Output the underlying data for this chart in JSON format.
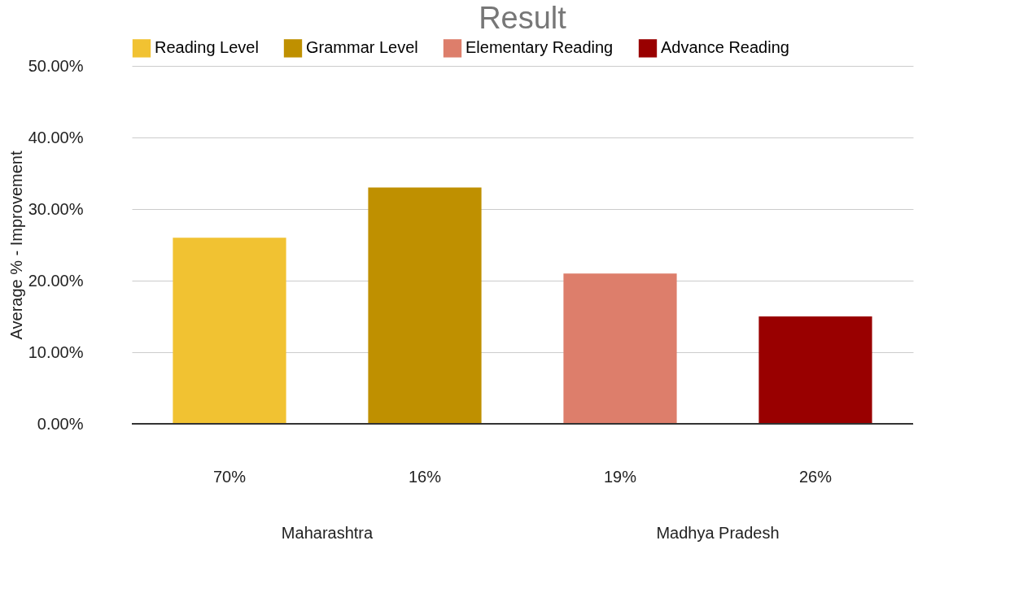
{
  "chart_data": {
    "type": "bar",
    "title": "Result",
    "ylabel": "Average % - Improvement",
    "categories": [
      "70%",
      "16%",
      "19%",
      "26%"
    ],
    "series": [
      {
        "name": "Reading Level",
        "color": "#f1c232",
        "values": [
          26,
          null,
          null,
          null
        ]
      },
      {
        "name": "Grammar Level",
        "color": "#bf9000",
        "values": [
          null,
          33,
          null,
          null
        ]
      },
      {
        "name": "Elementary Reading",
        "color": "#dd7e6b",
        "values": [
          null,
          null,
          21,
          null
        ]
      },
      {
        "name": "Advance Reading",
        "color": "#990000",
        "values": [
          null,
          null,
          null,
          15
        ]
      }
    ],
    "annotations": [
      "Maharashtra",
      "Madhya Pradesh"
    ],
    "ylim": [
      0,
      50
    ],
    "yticks": [
      {
        "value": 0,
        "label": "0.00%"
      },
      {
        "value": 10,
        "label": "10.00%"
      },
      {
        "value": 20,
        "label": "20.00%"
      },
      {
        "value": 30,
        "label": "30.00%"
      },
      {
        "value": 40,
        "label": "40.00%"
      },
      {
        "value": 50,
        "label": "50.00%"
      }
    ],
    "grid": "y",
    "legend": "top"
  }
}
